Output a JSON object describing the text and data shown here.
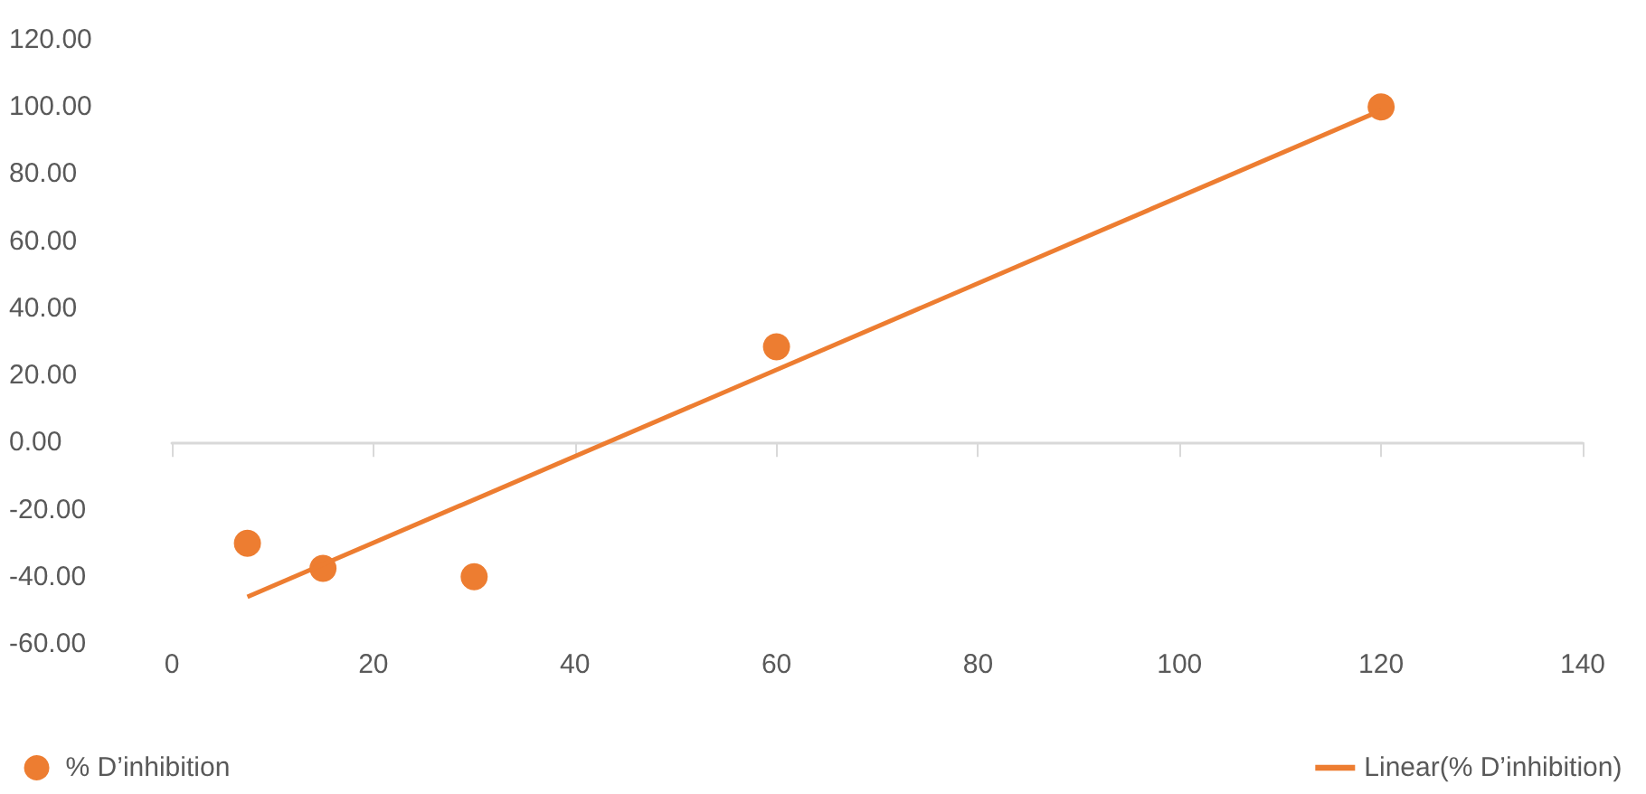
{
  "chart_data": {
    "type": "scatter",
    "series": [
      {
        "name": "% D’inhibition",
        "color": "#ed7d31",
        "marker": "circle",
        "x": [
          7.5,
          15,
          30,
          60,
          120
        ],
        "values": [
          -30,
          -37.5,
          -40,
          28.5,
          100
        ]
      },
      {
        "name": "Linear(% D’inhibition)",
        "type": "line",
        "color": "#ed7d31",
        "line_style": "solid",
        "x": [
          7.5,
          120
        ],
        "values": [
          -46,
          99
        ]
      }
    ],
    "xlim": [
      0,
      140
    ],
    "xticks": [
      0,
      20,
      40,
      60,
      80,
      100,
      120,
      140
    ],
    "ylim": [
      -60,
      120
    ],
    "yticks": [
      {
        "value": -60,
        "label": "-60.00"
      },
      {
        "value": -40,
        "label": "-40.00"
      },
      {
        "value": -20,
        "label": "-20.00"
      },
      {
        "value": 0,
        "label": "0.00"
      },
      {
        "value": 20,
        "label": "20.00"
      },
      {
        "value": 40,
        "label": "40.00"
      },
      {
        "value": 60,
        "label": "60.00"
      },
      {
        "value": 80,
        "label": "80.00"
      },
      {
        "value": 100,
        "label": "100.00"
      },
      {
        "value": 120,
        "label": "120.00"
      }
    ],
    "legend": "bottom"
  }
}
